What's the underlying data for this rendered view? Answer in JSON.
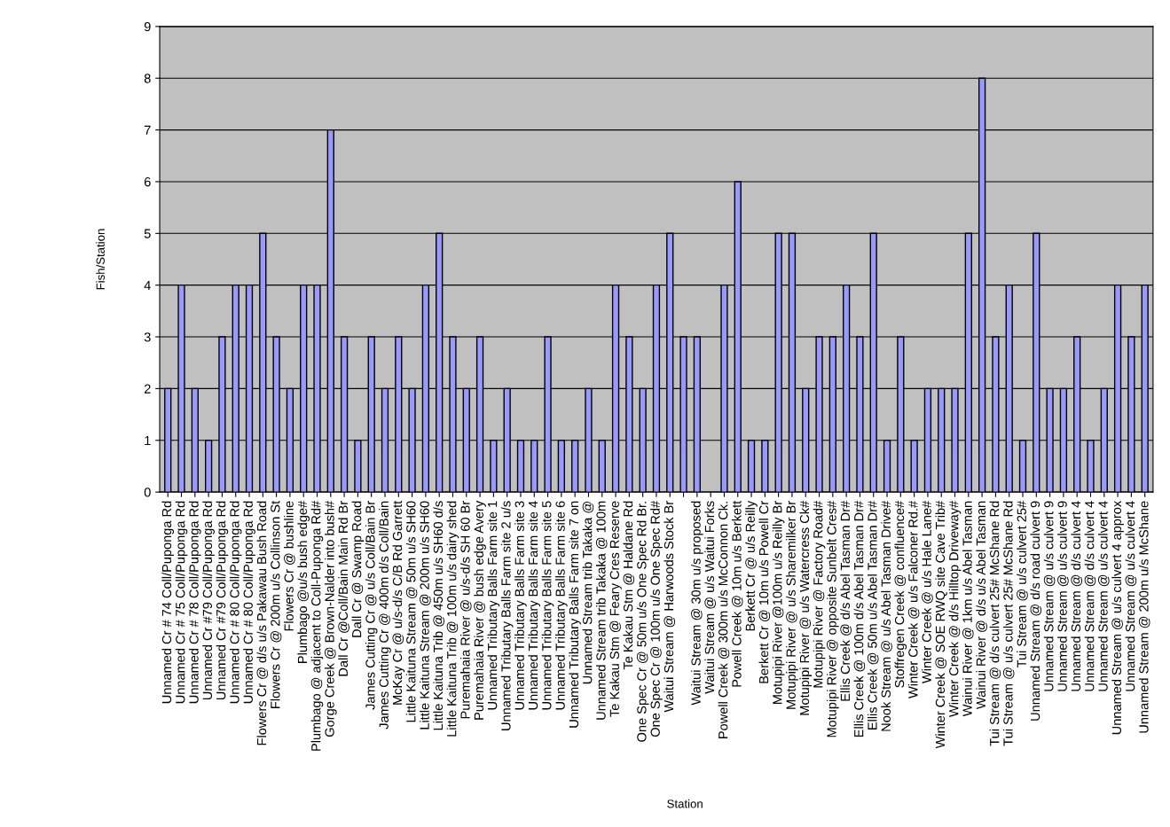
{
  "chart_data": {
    "type": "bar",
    "xlabel": "Station",
    "ylabel": "Fish/Station",
    "categories": [
      "Unnamed Cr # 74 Coll/Puponga Rd",
      "Unnamed Cr # 75 Coll/Puponga Rd",
      "Unnamed Cr # 78 Coll/Puponga Rd",
      "Unnamed Cr #79 Coll/Puponga Rd",
      "Unnamed Cr #79 Coll/Puponga Rd",
      "Unnamed Cr # 80 Coll/Puponga Rd",
      "Unnamed Cr # 80 Coll/Puponga Rd",
      "Flowers Cr @ d/s u/s Pakawau Bush Road",
      "Flowers Cr @ 200m u/s Collinson St",
      "Flowers Cr @ bushline",
      "Plumbago @u/s bush edge#",
      "Plumbago @ adjacent to Coll-Puponga Rd#",
      "Gorge Creek @ Brown-Nalder into bush#",
      "Dall Cr @Coll/Bain Main Rd Br",
      "Dall Cr @ Swamp Road",
      "James Cutting Cr @ u/s Coll/Bain Br",
      "James Cutting Cr @ 400m d/s Coll/Bain",
      "McKay Cr @ u/s-d/s C/B Rd Garrett",
      "Little Kaituna Stream @ 50m u/s SH60",
      "Little Kaituna Stream @ 200m u/s SH60",
      "Little Kaituna Trib @ 450m u/s SH60 d/s",
      "Little Kaituna Trib @ 100m u/s dairy shed",
      "Puremahaia River @ u/s-d/s SH 60 Br",
      "Puremahaia River @ bush edge Avery",
      "Unnamed Tributary Balls Farm site 1",
      "Unnamed Tributary Balls Farm site 2 u/s",
      "Unnamed Tributary Balls Farm site 3",
      "Unnamed Tributary Balls Farm site 4",
      "Unnamed Tributary Balls Farm site 5",
      "Unnamed Tributary Balls Farm site 6",
      "Unnamed Tributary Balls Farm site 7 on",
      "Unnamed Stream trib Takaka @",
      "Unnamed Stream trib Takaka @ 100m",
      "Te Kakau Stm @ Feary Cres Reserve",
      "Te Kakau Stm @ Haldane Rd",
      "One Spec Cr @ 50m u/s One Spec Rd Br.",
      "One Spec Cr @ 100m u/s One Spec Rd#",
      "Waitui Stream @ Harwoods Stock Br",
      null,
      "Waitui Stream @ 30m u/s proposed",
      "Waitui Stream @ u/s Waitui Forks",
      "Powell Creek @ 300m u/s McConnon Ck.",
      "Powell Creek @ 10m u/s Berkett",
      "Berkett Cr @ u/s Reilly",
      "Berkett Cr @ 10m u/s Powell Cr",
      "Motupipi River @100m u/s Reilly Br",
      "Motupipi River @ u/s Sharemilker Br",
      "Motupipi River @ u/s Watercress Ck#",
      "Motupipi River @ Factory Road#",
      "Motupipi River @ opposite Sunbelt Cres#",
      "Ellis Creek @ d/s Abel Tasman Dr#",
      "Ellis Creek @ 100m d/s Abel Tasman Dr#",
      "Ellis Creek @ 50m u/s Abel Tasman Dr#",
      "Nook Stream @ u/s Abel Tasman Drive#",
      "Stoffregen Creek @ confluence#",
      "Winter Creek @ u/s Falconer Rd.#",
      "Winter Creek @ u/s Hale Lane#",
      "Winter Creek @ SOE RWQ site Cave Trib#",
      "Winter Creek @ d/s Hilltop Driveway#",
      "Wainui River @ 1km u/s Abel Tasman",
      "Wainui River @ d/s u/s Abel Tasman",
      "Tui Stream @ d/s culvert 25# McShane Rd",
      "Tui Stream @ u/s culvert 25# McShane Rd",
      "Tui Stream @ u/s culvert 25#",
      "Unnamed Stream @ d/s road culvert 9",
      "Unnamed Stream @ u/s culvert 9",
      "Unnamed Stream @ u/s culvert 9",
      "Unnamed Stream @ d/s culvert 4",
      "Unnamed Stream @ d/s culvert 4",
      "Unnamed Stream @ u/s culvert 4",
      "Unnamed Stream @ u/s culvert 4 approx",
      "Unnamed Stream @ u/s culvert 4",
      "Unnamed Stream @ 200m u/s McShane"
    ],
    "values": [
      2,
      4,
      2,
      1,
      3,
      4,
      4,
      5,
      3,
      2,
      4,
      4,
      7,
      3,
      1,
      3,
      2,
      3,
      2,
      4,
      5,
      3,
      2,
      3,
      1,
      2,
      1,
      1,
      3,
      1,
      1,
      2,
      1,
      4,
      3,
      2,
      4,
      5,
      3,
      3,
      null,
      4,
      6,
      1,
      1,
      5,
      5,
      2,
      3,
      3,
      4,
      3,
      5,
      1,
      3,
      1,
      2,
      2,
      2,
      5,
      8,
      3,
      4,
      1,
      5,
      2,
      2,
      3,
      1,
      2,
      4,
      3,
      4
    ],
    "color": "#9999ff",
    "ylim": [
      0,
      9
    ],
    "yticks": [
      0,
      1,
      2,
      3,
      4,
      5,
      6,
      7,
      8,
      9
    ],
    "grid": "y"
  }
}
